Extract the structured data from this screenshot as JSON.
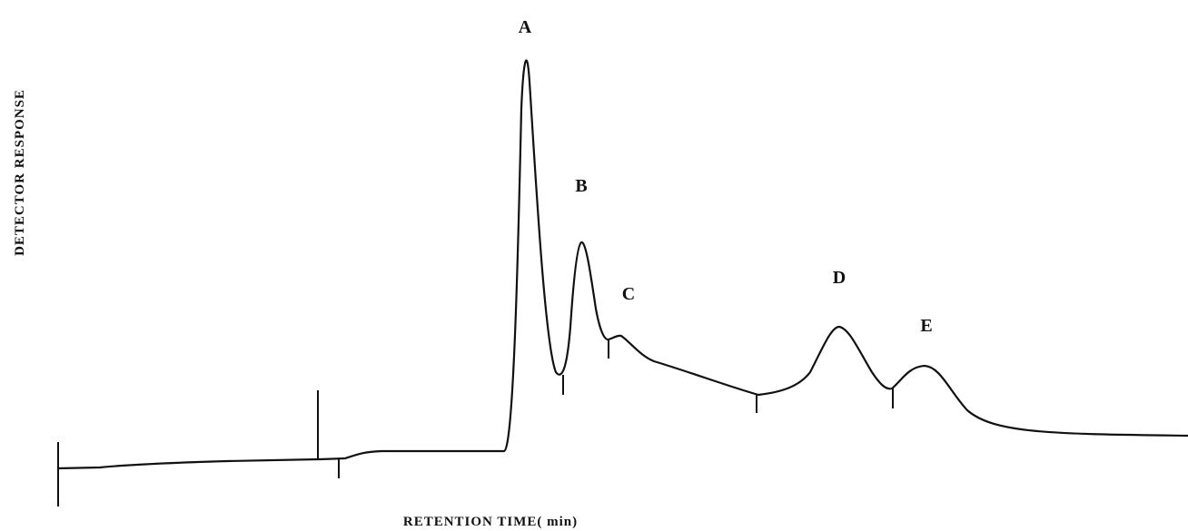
{
  "axes": {
    "y_label": "DETECTOR RESPONSE",
    "x_label": "RETENTION TIME( min)"
  },
  "peaks": [
    {
      "label": "A"
    },
    {
      "label": "B"
    },
    {
      "label": "C"
    },
    {
      "label": "D"
    },
    {
      "label": "E"
    }
  ]
}
